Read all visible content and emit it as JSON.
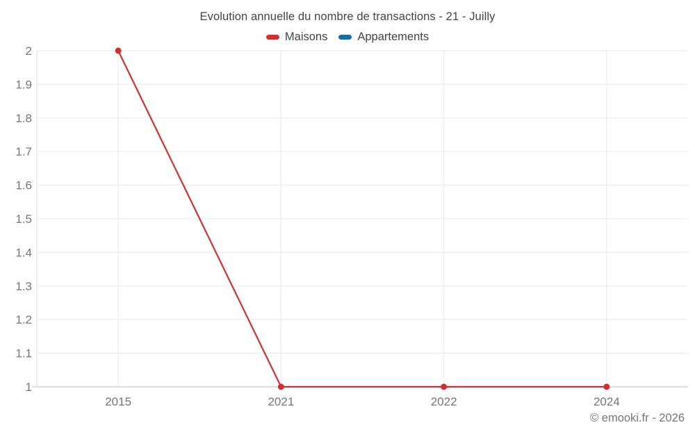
{
  "title": "Evolution annuelle du nombre de transactions - 21 - Juilly",
  "legend": {
    "items": [
      {
        "label": "Maisons",
        "color": "#d62e2e"
      },
      {
        "label": "Appartements",
        "color": "#1271a3"
      }
    ]
  },
  "footer": {
    "copyright": "© emooki.fr - 2026"
  },
  "colors": {
    "maisons": "#d62e2e",
    "appartements": "#1271a3",
    "grid_line": "#ededed",
    "axis_line": "#d5d5d5",
    "side_axis_line": "#e3e3e3",
    "tick_text": "#757575",
    "title_text": "#404347"
  },
  "chart_data": {
    "type": "line",
    "title": "Evolution annuelle du nombre de transactions - 21 - Juilly",
    "categories": [
      "2015",
      "2021",
      "2022",
      "2024"
    ],
    "series": [
      {
        "name": "Maisons",
        "color": "#d62e2e",
        "values": [
          2,
          1,
          1,
          1
        ]
      },
      {
        "name": "Appartements",
        "color": "#1271a3",
        "values": [
          null,
          null,
          null,
          null
        ]
      }
    ],
    "xlabel": "",
    "ylabel": "",
    "ylim": [
      1,
      2
    ],
    "ytick_step": 0.1,
    "ytick_labels": [
      "1",
      "1.1",
      "1.2",
      "1.3",
      "1.4",
      "1.5",
      "1.6",
      "1.7",
      "1.8",
      "1.9",
      "2"
    ],
    "grid": true,
    "legend_position": "top",
    "marker": "circle",
    "marker_radius": 4.5,
    "line_width": 2.2
  }
}
